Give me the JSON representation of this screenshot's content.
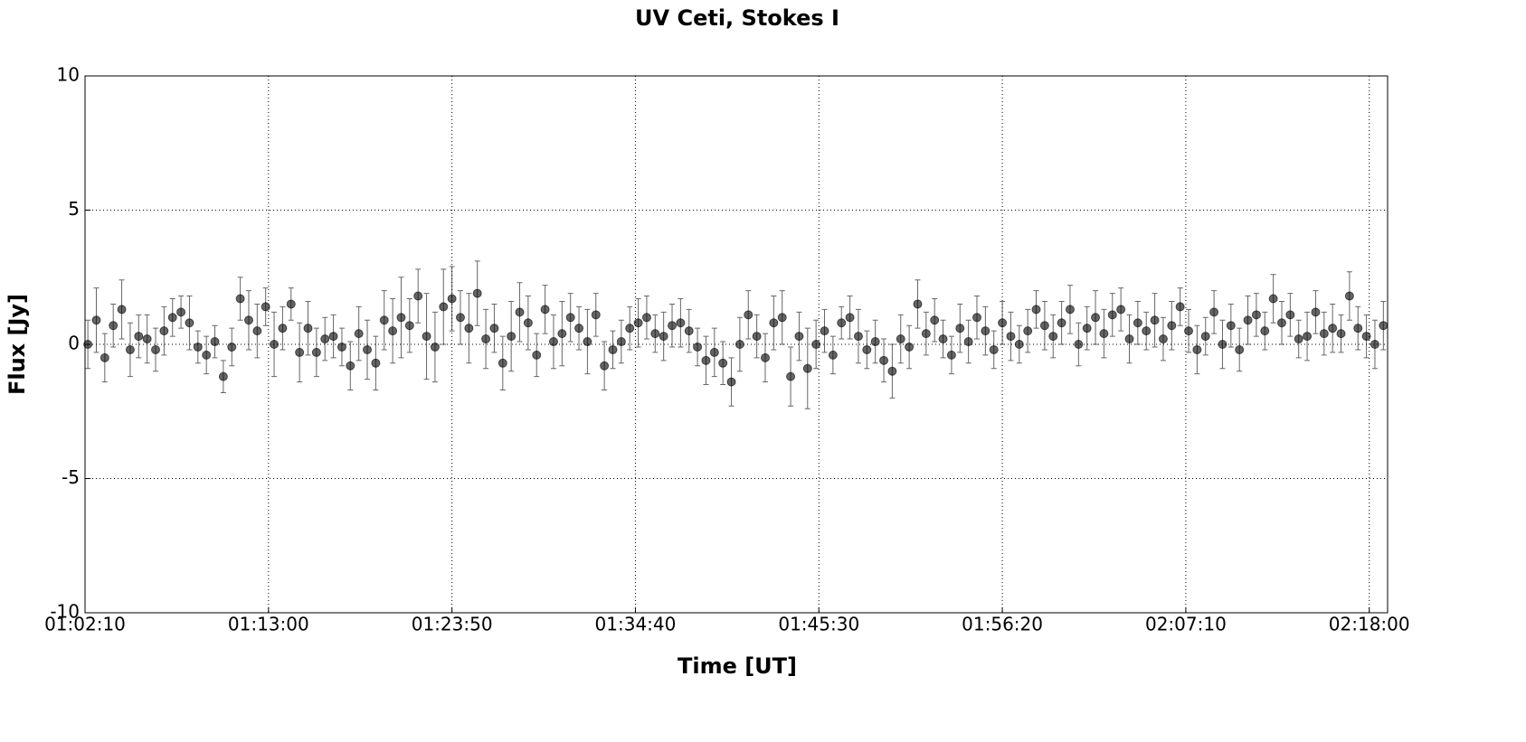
{
  "chart_data": {
    "type": "scatter",
    "title": "UV Ceti, Stokes I",
    "xlabel": "Time [UT]",
    "ylabel": "Flux [Jy]",
    "x": [
      "01:02:20",
      "01:02:50",
      "01:03:20",
      "01:03:50",
      "01:04:20",
      "01:04:50",
      "01:05:20",
      "01:05:50",
      "01:06:20",
      "01:06:50",
      "01:07:20",
      "01:07:50",
      "01:08:20",
      "01:08:50",
      "01:09:20",
      "01:09:50",
      "01:10:20",
      "01:10:50",
      "01:11:20",
      "01:11:50",
      "01:12:20",
      "01:12:50",
      "01:13:20",
      "01:13:50",
      "01:14:20",
      "01:14:50",
      "01:15:20",
      "01:15:50",
      "01:16:20",
      "01:16:50",
      "01:17:20",
      "01:17:50",
      "01:18:20",
      "01:18:50",
      "01:19:20",
      "01:19:50",
      "01:20:20",
      "01:20:50",
      "01:21:20",
      "01:21:50",
      "01:22:20",
      "01:22:50",
      "01:23:20",
      "01:23:50",
      "01:24:20",
      "01:24:50",
      "01:25:20",
      "01:25:50",
      "01:26:20",
      "01:26:50",
      "01:27:20",
      "01:27:50",
      "01:28:20",
      "01:28:50",
      "01:29:20",
      "01:29:50",
      "01:30:20",
      "01:30:50",
      "01:31:20",
      "01:31:50",
      "01:32:20",
      "01:32:50",
      "01:33:20",
      "01:33:50",
      "01:34:20",
      "01:34:50",
      "01:35:20",
      "01:35:50",
      "01:36:20",
      "01:36:50",
      "01:37:20",
      "01:37:50",
      "01:38:20",
      "01:38:50",
      "01:39:20",
      "01:39:50",
      "01:40:20",
      "01:40:50",
      "01:41:20",
      "01:41:50",
      "01:42:20",
      "01:42:50",
      "01:43:20",
      "01:43:50",
      "01:44:20",
      "01:44:50",
      "01:45:20",
      "01:45:50",
      "01:46:20",
      "01:46:50",
      "01:47:20",
      "01:47:50",
      "01:48:20",
      "01:48:50",
      "01:49:20",
      "01:49:50",
      "01:50:20",
      "01:50:50",
      "01:51:20",
      "01:51:50",
      "01:52:20",
      "01:52:50",
      "01:53:20",
      "01:53:50",
      "01:54:20",
      "01:54:50",
      "01:55:20",
      "01:55:50",
      "01:56:20",
      "01:56:50",
      "01:57:20",
      "01:57:50",
      "01:58:20",
      "01:58:50",
      "01:59:20",
      "01:59:50",
      "02:00:20",
      "02:00:50",
      "02:01:20",
      "02:01:50",
      "02:02:20",
      "02:02:50",
      "02:03:20",
      "02:03:50",
      "02:04:20",
      "02:04:50",
      "02:05:20",
      "02:05:50",
      "02:06:20",
      "02:06:50",
      "02:07:20",
      "02:07:50",
      "02:08:20",
      "02:08:50",
      "02:09:20",
      "02:09:50",
      "02:10:20",
      "02:10:50",
      "02:11:20",
      "02:11:50",
      "02:12:20",
      "02:12:50",
      "02:13:20",
      "02:13:50",
      "02:14:20",
      "02:14:50",
      "02:15:20",
      "02:15:50",
      "02:16:20",
      "02:16:50",
      "02:17:20",
      "02:17:50",
      "02:18:20",
      "02:18:50"
    ],
    "series": [
      {
        "color": "#000000",
        "alpha": 0.6,
        "values": [
          0.0,
          0.9,
          -0.5,
          0.7,
          1.3,
          -0.2,
          0.3,
          0.2,
          -0.2,
          0.5,
          1.0,
          1.2,
          0.8,
          -0.1,
          -0.4,
          0.1,
          -1.2,
          -0.1,
          1.7,
          0.9,
          0.5,
          1.4,
          0.0,
          0.6,
          1.5,
          -0.3,
          0.6,
          -0.3,
          0.2,
          0.3,
          -0.1,
          -0.8,
          0.4,
          -0.2,
          -0.7,
          0.9,
          0.5,
          1.0,
          0.7,
          1.8,
          0.3,
          -0.1,
          1.4,
          1.7,
          1.0,
          0.6,
          1.9,
          0.2,
          0.6,
          -0.7,
          0.3,
          1.2,
          0.8,
          -0.4,
          1.3,
          0.1,
          0.4,
          1.0,
          0.6,
          0.1,
          1.1,
          -0.8,
          -0.2,
          0.1,
          0.6,
          0.8,
          1.0,
          0.4,
          0.3,
          0.7,
          0.8,
          0.5,
          -0.1,
          -0.6,
          -0.3,
          -0.7,
          -1.4,
          0.0,
          1.1,
          0.3,
          -0.5,
          0.8,
          1.0,
          -1.2,
          0.3,
          -0.9,
          0.0,
          0.5,
          -0.4,
          0.8,
          1.0,
          0.3,
          -0.2,
          0.1,
          -0.6,
          -1.0,
          0.2,
          -0.1,
          1.5,
          0.4,
          0.9,
          0.2,
          -0.4,
          0.6,
          0.1,
          1.0,
          0.5,
          -0.2,
          0.8,
          0.3,
          0.0,
          0.5,
          1.3,
          0.7,
          0.3,
          0.8,
          1.3,
          0.0,
          0.6,
          1.0,
          0.4,
          1.1,
          1.3,
          0.2,
          0.8,
          0.5,
          0.9,
          0.2,
          0.7,
          1.4,
          0.5,
          -0.2,
          0.3,
          1.2,
          0.0,
          0.7,
          -0.2,
          0.9,
          1.1,
          0.5,
          1.7,
          0.8,
          1.1,
          0.2,
          0.3,
          1.2,
          0.4,
          0.6,
          0.4,
          1.8,
          0.6,
          0.3,
          0.0,
          0.7
        ],
        "errors": [
          0.9,
          1.2,
          0.9,
          0.8,
          1.1,
          1.0,
          0.8,
          0.9,
          0.8,
          0.9,
          0.7,
          0.6,
          1.0,
          0.6,
          0.7,
          0.6,
          0.6,
          0.7,
          0.8,
          1.1,
          1.0,
          0.7,
          1.2,
          0.8,
          0.6,
          1.1,
          1.0,
          0.9,
          0.8,
          0.8,
          0.7,
          0.9,
          1.0,
          1.1,
          1.0,
          1.1,
          1.2,
          1.5,
          1.0,
          1.0,
          1.6,
          1.3,
          1.4,
          1.2,
          1.0,
          1.3,
          1.2,
          1.1,
          0.9,
          1.0,
          1.3,
          1.1,
          1.0,
          0.8,
          0.9,
          1.0,
          1.2,
          0.9,
          0.8,
          1.2,
          0.8,
          0.9,
          0.7,
          0.8,
          0.8,
          0.9,
          0.8,
          0.7,
          0.9,
          0.8,
          0.9,
          0.8,
          0.7,
          0.9,
          0.9,
          0.8,
          0.9,
          1.0,
          0.9,
          0.8,
          0.9,
          1.0,
          1.0,
          1.1,
          0.9,
          1.5,
          0.9,
          0.8,
          0.7,
          0.6,
          0.8,
          1.0,
          0.7,
          0.8,
          0.8,
          1.0,
          0.9,
          0.8,
          0.9,
          0.8,
          0.8,
          0.7,
          0.7,
          0.9,
          0.8,
          0.8,
          0.9,
          0.7,
          0.8,
          0.9,
          0.7,
          0.8,
          0.7,
          0.9,
          0.8,
          0.8,
          0.9,
          0.8,
          0.8,
          1.0,
          0.9,
          0.8,
          0.8,
          0.9,
          0.8,
          0.7,
          1.0,
          0.8,
          0.9,
          0.7,
          0.8,
          0.9,
          0.7,
          0.8,
          0.9,
          0.8,
          0.8,
          0.9,
          0.8,
          0.7,
          0.9,
          0.8,
          0.8,
          0.7,
          0.9,
          0.8,
          0.8,
          0.9,
          0.7,
          0.9,
          0.8,
          0.8,
          0.9,
          0.9
        ]
      }
    ],
    "xlim": [
      "01:02:10",
      "02:19:05"
    ],
    "xticks": [
      "01:02:10",
      "01:13:00",
      "01:23:50",
      "01:34:40",
      "01:45:30",
      "01:56:20",
      "02:07:10",
      "02:18:00"
    ],
    "ylim": [
      -10,
      10
    ],
    "yticks": [
      -10,
      -5,
      0,
      5,
      10
    ],
    "grid": true
  }
}
